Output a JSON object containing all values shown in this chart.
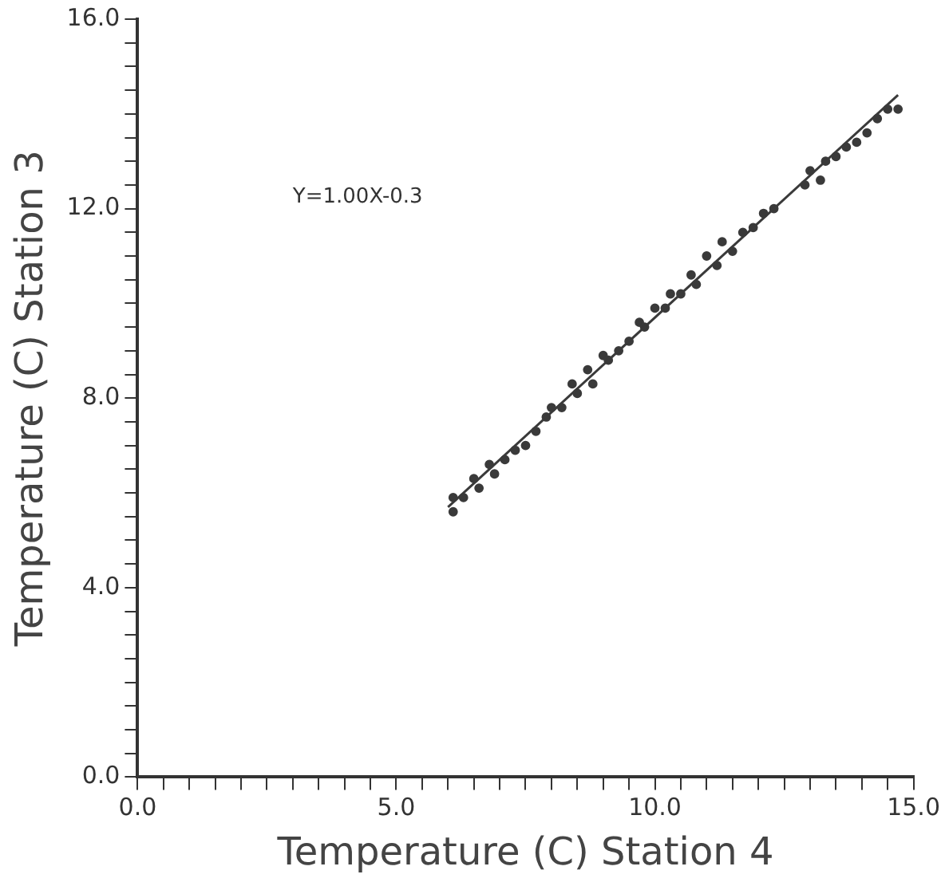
{
  "chart_data": {
    "type": "scatter",
    "xlabel": "Temperature (C) Station 4",
    "ylabel": "Temperature (C) Station 3",
    "annotations": [
      "Y=1.00X-0.3"
    ],
    "series": [
      {
        "color": "#3a3a3a",
        "marker": "circle",
        "x": [
          6.1,
          6.1,
          6.3,
          6.5,
          6.6,
          6.8,
          6.9,
          7.1,
          7.3,
          7.5,
          7.7,
          7.9,
          8.0,
          8.2,
          8.4,
          8.5,
          8.7,
          8.8,
          9.0,
          9.1,
          9.3,
          9.5,
          9.7,
          9.8,
          10.0,
          10.2,
          10.3,
          10.5,
          10.7,
          10.8,
          11.0,
          11.2,
          11.3,
          11.5,
          11.7,
          11.9,
          12.1,
          12.3,
          12.9,
          13.0,
          13.2,
          13.3,
          13.5,
          13.7,
          13.9,
          14.1,
          14.3,
          14.5,
          14.7
        ],
        "values": [
          5.6,
          5.9,
          5.9,
          6.3,
          6.1,
          6.6,
          6.4,
          6.7,
          6.9,
          7.0,
          7.3,
          7.6,
          7.8,
          7.8,
          8.3,
          8.1,
          8.6,
          8.3,
          8.9,
          8.8,
          9.0,
          9.2,
          9.6,
          9.5,
          9.9,
          9.9,
          10.2,
          10.2,
          10.6,
          10.4,
          11.0,
          10.8,
          11.3,
          11.1,
          11.5,
          11.6,
          11.9,
          12.0,
          12.5,
          12.8,
          12.6,
          13.0,
          13.1,
          13.3,
          13.4,
          13.6,
          13.9,
          14.1,
          14.1
        ]
      },
      {
        "type": "line",
        "color": "#3a3a3a",
        "marker": "none",
        "x": [
          6.0,
          14.7
        ],
        "values": [
          5.7,
          14.4
        ]
      }
    ],
    "xlim": [
      0,
      15
    ],
    "ylim": [
      0,
      16
    ],
    "xticks": [
      {
        "value": 0,
        "label": "0.0"
      },
      {
        "value": 0.5,
        "label": null
      },
      {
        "value": 1,
        "label": null
      },
      {
        "value": 1.5,
        "label": null
      },
      {
        "value": 2,
        "label": null
      },
      {
        "value": 2.5,
        "label": null
      },
      {
        "value": 3,
        "label": null
      },
      {
        "value": 3.5,
        "label": null
      },
      {
        "value": 4,
        "label": null
      },
      {
        "value": 4.5,
        "label": null
      },
      {
        "value": 5,
        "label": "5.0"
      },
      {
        "value": 5.5,
        "label": null
      },
      {
        "value": 6,
        "label": null
      },
      {
        "value": 6.5,
        "label": null
      },
      {
        "value": 7,
        "label": null
      },
      {
        "value": 7.5,
        "label": null
      },
      {
        "value": 8,
        "label": null
      },
      {
        "value": 8.5,
        "label": null
      },
      {
        "value": 9,
        "label": null
      },
      {
        "value": 9.5,
        "label": null
      },
      {
        "value": 10,
        "label": "10.0"
      },
      {
        "value": 10.5,
        "label": null
      },
      {
        "value": 11,
        "label": null
      },
      {
        "value": 11.5,
        "label": null
      },
      {
        "value": 12,
        "label": null
      },
      {
        "value": 12.5,
        "label": null
      },
      {
        "value": 13,
        "label": null
      },
      {
        "value": 13.5,
        "label": null
      },
      {
        "value": 14,
        "label": null
      },
      {
        "value": 14.5,
        "label": null
      },
      {
        "value": 15,
        "label": "15.0"
      }
    ],
    "yticks": [
      {
        "value": 0,
        "label": "0.0"
      },
      {
        "value": 0.5,
        "label": null
      },
      {
        "value": 1,
        "label": null
      },
      {
        "value": 1.5,
        "label": null
      },
      {
        "value": 2,
        "label": null
      },
      {
        "value": 2.5,
        "label": null
      },
      {
        "value": 3,
        "label": null
      },
      {
        "value": 3.5,
        "label": null
      },
      {
        "value": 4,
        "label": "4.0"
      },
      {
        "value": 4.5,
        "label": null
      },
      {
        "value": 5,
        "label": null
      },
      {
        "value": 5.5,
        "label": null
      },
      {
        "value": 6,
        "label": null
      },
      {
        "value": 6.5,
        "label": null
      },
      {
        "value": 7,
        "label": null
      },
      {
        "value": 7.5,
        "label": null
      },
      {
        "value": 8,
        "label": "8.0"
      },
      {
        "value": 8.5,
        "label": null
      },
      {
        "value": 9,
        "label": null
      },
      {
        "value": 9.5,
        "label": null
      },
      {
        "value": 10,
        "label": null
      },
      {
        "value": 10.5,
        "label": null
      },
      {
        "value": 11,
        "label": null
      },
      {
        "value": 11.5,
        "label": null
      },
      {
        "value": 12,
        "label": "12.0"
      },
      {
        "value": 12.5,
        "label": null
      },
      {
        "value": 13,
        "label": null
      },
      {
        "value": 13.5,
        "label": null
      },
      {
        "value": 14,
        "label": null
      },
      {
        "value": 14.5,
        "label": null
      },
      {
        "value": 15,
        "label": null
      },
      {
        "value": 15.5,
        "label": null
      },
      {
        "value": 16,
        "label": "16.0"
      }
    ],
    "grid": false,
    "legend": false
  }
}
